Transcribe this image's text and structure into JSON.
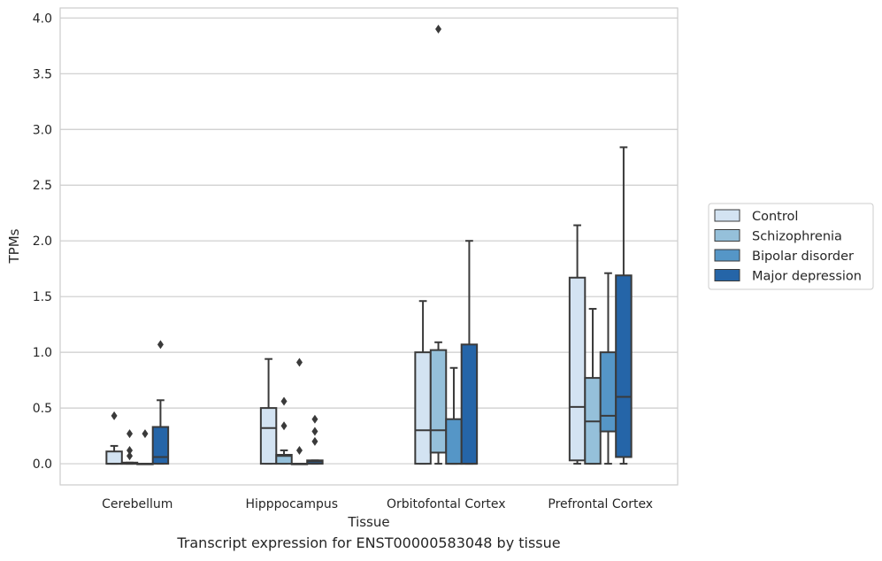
{
  "caption": "Transcript expression for ENST00000583048 by tissue",
  "colors": {
    "Control": "#d3e3f2",
    "Schizophrenia": "#95c0da",
    "Bipolar disorder": "#5596c7",
    "Major depression": "#2565a8",
    "line": "#3a3a3a",
    "grid": "#cccccc"
  },
  "chart_data": {
    "type": "boxplot",
    "xlabel": "Tissue",
    "ylabel": "TPMs",
    "ylim": [
      -0.19,
      4.09
    ],
    "yticks": [
      "0.0",
      "0.5",
      "1.0",
      "1.5",
      "2.0",
      "2.5",
      "3.0",
      "3.5",
      "4.0"
    ],
    "grid": "horizontal",
    "legend_position": "right",
    "categories": [
      "Cerebellum",
      "Hipppocampus",
      "Orbitofontal Cortex",
      "Prefrontal Cortex"
    ],
    "series": [
      {
        "name": "Control",
        "boxes": [
          {
            "whislo": 0.0,
            "q1": 0.0,
            "med": 0.0,
            "q3": 0.11,
            "whishi": 0.16,
            "fliers": [
              0.43
            ]
          },
          {
            "whislo": 0.0,
            "q1": 0.0,
            "med": 0.32,
            "q3": 0.5,
            "whishi": 0.94,
            "fliers": []
          },
          {
            "whislo": 0.0,
            "q1": 0.0,
            "med": 0.3,
            "q3": 1.0,
            "whishi": 1.46,
            "fliers": []
          },
          {
            "whislo": 0.0,
            "q1": 0.03,
            "med": 0.51,
            "q3": 1.67,
            "whishi": 2.14,
            "fliers": []
          }
        ]
      },
      {
        "name": "Schizophrenia",
        "boxes": [
          {
            "whislo": 0.0,
            "q1": 0.0,
            "med": 0.0,
            "q3": 0.01,
            "whishi": 0.01,
            "fliers": [
              0.07,
              0.12,
              0.27
            ]
          },
          {
            "whislo": 0.0,
            "q1": 0.0,
            "med": 0.07,
            "q3": 0.08,
            "whishi": 0.12,
            "fliers": [
              0.34,
              0.56
            ]
          },
          {
            "whislo": 0.0,
            "q1": 0.1,
            "med": 0.3,
            "q3": 1.02,
            "whishi": 1.09,
            "fliers": [
              3.9
            ]
          },
          {
            "whislo": 0.0,
            "q1": 0.0,
            "med": 0.38,
            "q3": 0.77,
            "whishi": 1.39,
            "fliers": []
          }
        ]
      },
      {
        "name": "Bipolar disorder",
        "boxes": [
          {
            "whislo": 0.0,
            "q1": 0.0,
            "med": 0.0,
            "q3": 0.0,
            "whishi": 0.0,
            "fliers": [
              0.27
            ]
          },
          {
            "whislo": 0.0,
            "q1": 0.0,
            "med": 0.0,
            "q3": 0.0,
            "whishi": 0.0,
            "fliers": [
              0.12,
              0.91
            ]
          },
          {
            "whislo": 0.0,
            "q1": 0.0,
            "med": 0.0,
            "q3": 0.4,
            "whishi": 0.86,
            "fliers": []
          },
          {
            "whislo": 0.0,
            "q1": 0.29,
            "med": 0.43,
            "q3": 1.0,
            "whishi": 1.71,
            "fliers": []
          }
        ]
      },
      {
        "name": "Major depression",
        "boxes": [
          {
            "whislo": 0.0,
            "q1": 0.0,
            "med": 0.06,
            "q3": 0.33,
            "whishi": 0.57,
            "fliers": [
              1.07
            ]
          },
          {
            "whislo": 0.0,
            "q1": 0.0,
            "med": 0.02,
            "q3": 0.03,
            "whishi": 0.03,
            "fliers": [
              0.2,
              0.29,
              0.4
            ]
          },
          {
            "whislo": 0.0,
            "q1": 0.0,
            "med": 0.0,
            "q3": 1.07,
            "whishi": 2.0,
            "fliers": []
          },
          {
            "whislo": 0.0,
            "q1": 0.06,
            "med": 0.6,
            "q3": 1.69,
            "whishi": 2.84,
            "fliers": []
          }
        ]
      }
    ]
  }
}
